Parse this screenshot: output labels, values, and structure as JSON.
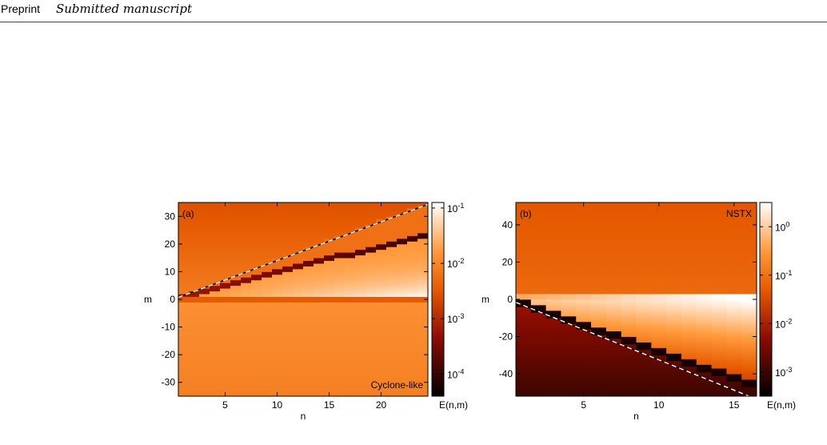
{
  "header": {
    "tag": "Preprint",
    "subtitle": "Submitted manuscript"
  },
  "chart_data": [
    {
      "type": "heatmap",
      "panel_label": "(a)",
      "annotation": "Cyclone-like",
      "xlabel": "n",
      "ylabel": "m",
      "xlim": [
        0.5,
        24.5
      ],
      "ylim": [
        -35,
        35
      ],
      "xticks": [
        5,
        10,
        15,
        20
      ],
      "yticks": [
        30,
        20,
        10,
        0,
        -10,
        -20,
        -30
      ],
      "n_values": [
        1,
        2,
        3,
        4,
        5,
        6,
        7,
        8,
        9,
        10,
        11,
        12,
        13,
        14,
        15,
        16,
        17,
        18,
        19,
        20,
        21,
        22,
        23,
        24
      ],
      "ridge_slope_m_per_n": 0.94,
      "dashed_line_slope_m_per_n": 1.4,
      "colorbar": {
        "label": "E(n,m)",
        "scale": "log",
        "ticks": [
          {
            "exp": "-1"
          },
          {
            "exp": "-2"
          },
          {
            "exp": "-3"
          },
          {
            "exp": "-4"
          }
        ],
        "log_range": [
          -4.4,
          -0.9
        ]
      }
    },
    {
      "type": "heatmap",
      "panel_label": "(b)",
      "annotation": "NSTX",
      "xlabel": "n",
      "ylabel": "m",
      "xlim": [
        0.5,
        16.5
      ],
      "ylim": [
        -52,
        52
      ],
      "xticks": [
        5,
        10,
        15
      ],
      "yticks": [
        40,
        20,
        0,
        -20,
        -40
      ],
      "n_values": [
        1,
        2,
        3,
        4,
        5,
        6,
        7,
        8,
        9,
        10,
        11,
        12,
        13,
        14,
        15,
        16
      ],
      "ridge_slope_m_per_n": -2.85,
      "dashed_line_slope_m_per_n": -3.25,
      "colorbar": {
        "label": "E(n,m)",
        "scale": "log",
        "ticks": [
          {
            "exp": "0"
          },
          {
            "exp": "-1"
          },
          {
            "exp": "-2"
          },
          {
            "exp": "-3"
          }
        ],
        "log_range": [
          -3.5,
          0.5
        ]
      }
    }
  ],
  "caption": ""
}
